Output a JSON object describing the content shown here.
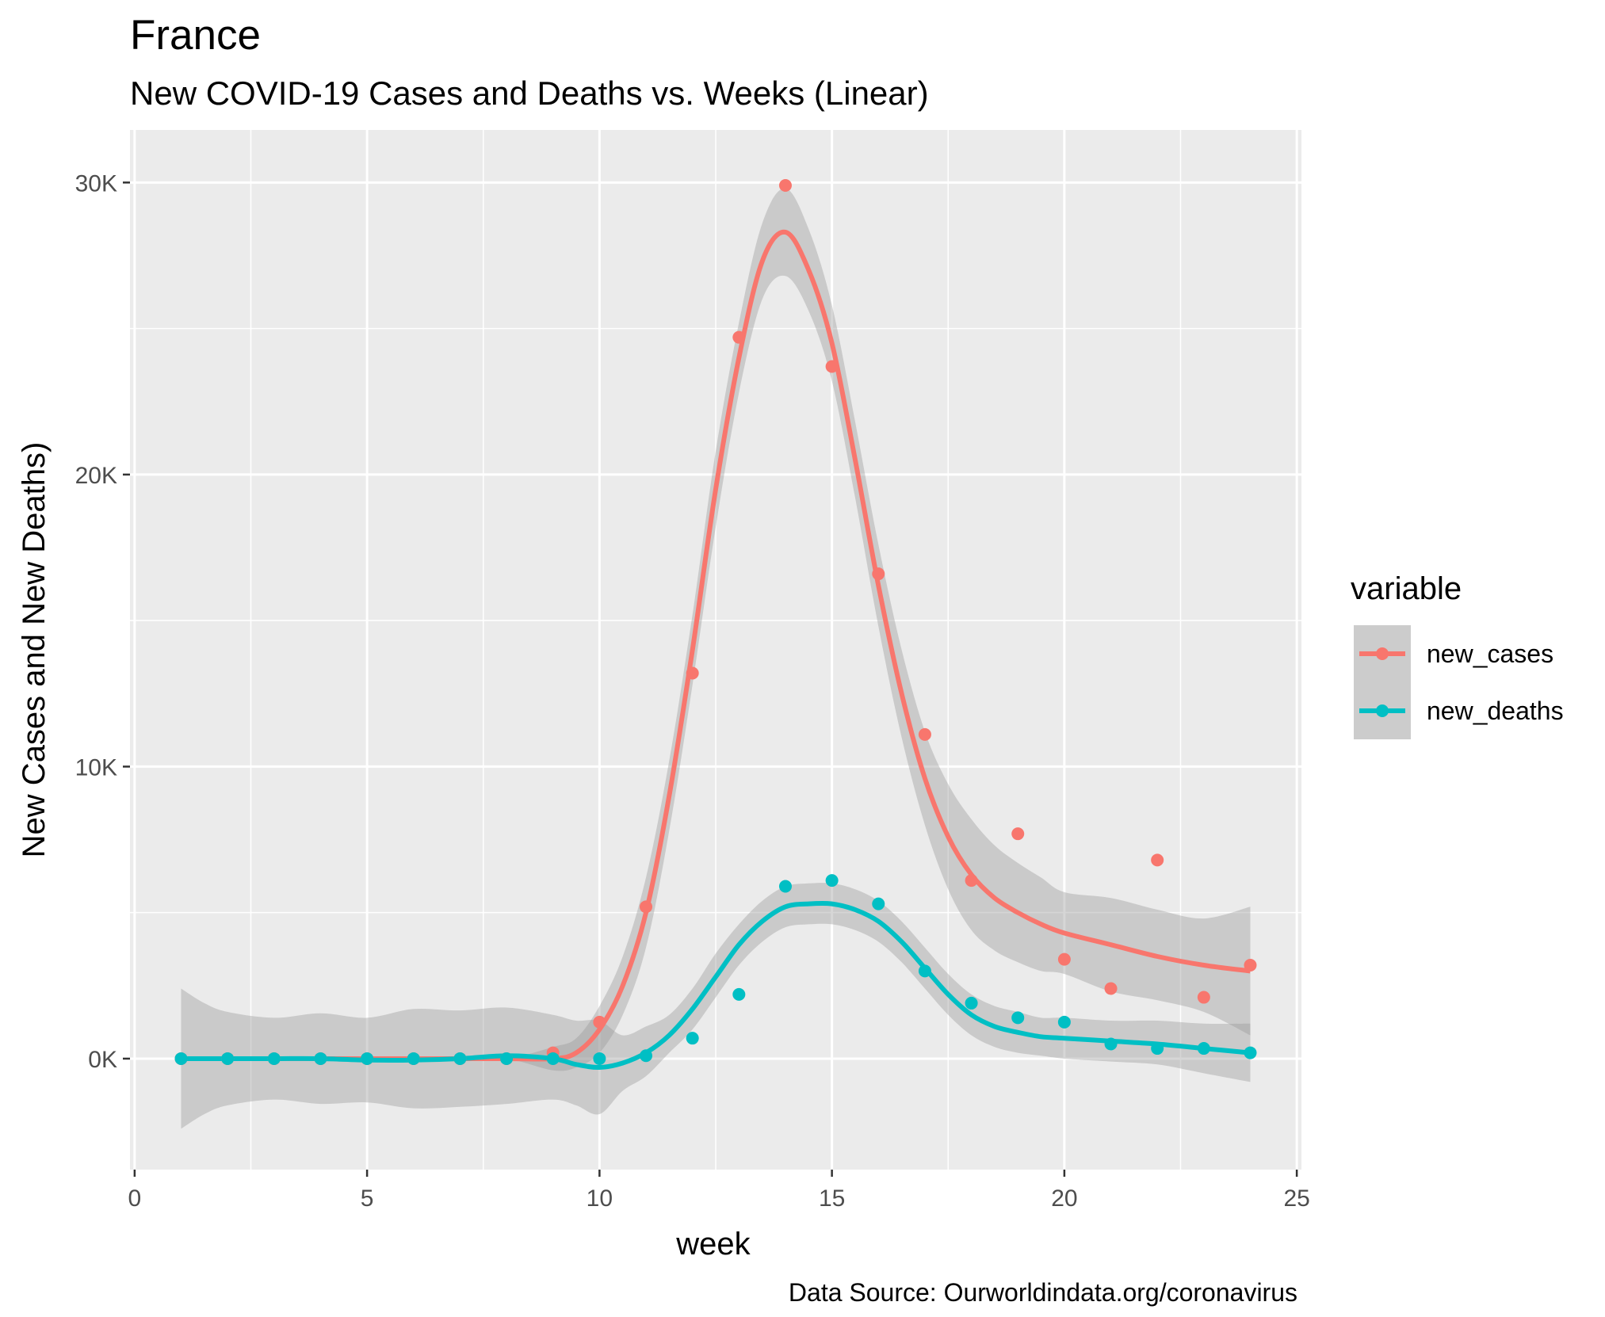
{
  "chart_data": {
    "type": "scatter",
    "title": "France",
    "subtitle": "New COVID-19 Cases and Deaths vs. Weeks (Linear)",
    "xlabel": "week",
    "ylabel": "New Cases and New Deaths)",
    "caption": "Data Source: Ourworldindata.org/coronavirus",
    "xlim": [
      -0.1,
      25.1
    ],
    "ylim": [
      -3800,
      31800
    ],
    "x_ticks": [
      0,
      5,
      10,
      15,
      20,
      25
    ],
    "y_ticks": [
      0,
      10000,
      20000,
      30000
    ],
    "y_tick_labels": [
      "0K",
      "10K",
      "20K",
      "30K"
    ],
    "grid": true,
    "legend_title": "variable",
    "legend_position": "right",
    "series": [
      {
        "name": "new_cases",
        "color": "#F8766D",
        "x": [
          1,
          2,
          3,
          4,
          5,
          6,
          7,
          8,
          9,
          10,
          11,
          12,
          13,
          14,
          15,
          16,
          17,
          18,
          19,
          20,
          21,
          22,
          23,
          24
        ],
        "values": [
          0,
          0,
          0,
          0,
          0,
          0,
          0,
          0,
          200,
          1250,
          5200,
          13200,
          24700,
          29900,
          23700,
          16600,
          11100,
          6100,
          7700,
          3400,
          2400,
          6800,
          2100,
          3200
        ],
        "smooth": [
          [
            1,
            0
          ],
          [
            2,
            0
          ],
          [
            3,
            0
          ],
          [
            4,
            0
          ],
          [
            5,
            0
          ],
          [
            6,
            0
          ],
          [
            7,
            0
          ],
          [
            8,
            0
          ],
          [
            9,
            0
          ],
          [
            9.5,
            200
          ],
          [
            10,
            1000
          ],
          [
            10.5,
            2500
          ],
          [
            11,
            5000
          ],
          [
            11.5,
            9000
          ],
          [
            12,
            14000
          ],
          [
            12.5,
            19500
          ],
          [
            13,
            24000
          ],
          [
            13.5,
            27300
          ],
          [
            14,
            28300
          ],
          [
            14.5,
            27000
          ],
          [
            15,
            24500
          ],
          [
            15.5,
            20500
          ],
          [
            16,
            16200
          ],
          [
            16.5,
            12500
          ],
          [
            17,
            9600
          ],
          [
            17.5,
            7600
          ],
          [
            18,
            6300
          ],
          [
            18.5,
            5500
          ],
          [
            19,
            5000
          ],
          [
            19.5,
            4600
          ],
          [
            20,
            4300
          ],
          [
            21,
            3900
          ],
          [
            22,
            3500
          ],
          [
            23,
            3200
          ],
          [
            24,
            3000
          ]
        ],
        "band": [
          [
            1,
            0,
            0
          ],
          [
            2,
            0,
            0
          ],
          [
            3,
            0,
            0
          ],
          [
            4,
            0,
            0
          ],
          [
            5,
            0,
            0
          ],
          [
            6,
            0,
            0
          ],
          [
            7,
            0,
            0
          ],
          [
            8,
            0,
            0
          ],
          [
            9,
            -400,
            400
          ],
          [
            9.5,
            -300,
            700
          ],
          [
            10,
            200,
            1800
          ],
          [
            10.5,
            1500,
            3500
          ],
          [
            11,
            3800,
            6200
          ],
          [
            11.5,
            7800,
            10200
          ],
          [
            12,
            12800,
            15200
          ],
          [
            12.5,
            18200,
            20800
          ],
          [
            13,
            22800,
            25200
          ],
          [
            13.5,
            26000,
            28600
          ],
          [
            14,
            26800,
            29800
          ],
          [
            14.5,
            25600,
            28400
          ],
          [
            15,
            23200,
            25800
          ],
          [
            15.5,
            19200,
            21800
          ],
          [
            16,
            14800,
            17600
          ],
          [
            16.5,
            11000,
            14000
          ],
          [
            17,
            8000,
            11200
          ],
          [
            17.5,
            5800,
            9400
          ],
          [
            18,
            4400,
            8200
          ],
          [
            18.5,
            3700,
            7300
          ],
          [
            19,
            3300,
            6700
          ],
          [
            19.5,
            3000,
            6200
          ],
          [
            20,
            2900,
            5700
          ],
          [
            21,
            2300,
            5500
          ],
          [
            22,
            2000,
            5100
          ],
          [
            23,
            1600,
            4800
          ],
          [
            24,
            800,
            5200
          ]
        ]
      },
      {
        "name": "new_deaths",
        "color": "#00BFC4",
        "x": [
          1,
          2,
          3,
          4,
          5,
          6,
          7,
          8,
          9,
          10,
          11,
          12,
          13,
          14,
          15,
          16,
          17,
          18,
          19,
          20,
          21,
          22,
          23,
          24
        ],
        "values": [
          0,
          0,
          0,
          0,
          0,
          0,
          0,
          0,
          0,
          0,
          100,
          700,
          2200,
          5900,
          6100,
          5300,
          3000,
          1900,
          1400,
          1250,
          500,
          350,
          350,
          200
        ],
        "smooth": [
          [
            1,
            0
          ],
          [
            2,
            0
          ],
          [
            3,
            0
          ],
          [
            4,
            0
          ],
          [
            5,
            -50
          ],
          [
            6,
            -50
          ],
          [
            7,
            0
          ],
          [
            8,
            100
          ],
          [
            9,
            0
          ],
          [
            9.5,
            -200
          ],
          [
            10,
            -300
          ],
          [
            10.5,
            -150
          ],
          [
            11,
            200
          ],
          [
            11.5,
            800
          ],
          [
            12,
            1700
          ],
          [
            12.5,
            2800
          ],
          [
            13,
            3900
          ],
          [
            13.5,
            4700
          ],
          [
            14,
            5200
          ],
          [
            14.5,
            5300
          ],
          [
            15,
            5300
          ],
          [
            15.5,
            5100
          ],
          [
            16,
            4700
          ],
          [
            16.5,
            4000
          ],
          [
            17,
            3100
          ],
          [
            17.5,
            2200
          ],
          [
            18,
            1500
          ],
          [
            18.5,
            1100
          ],
          [
            19,
            900
          ],
          [
            19.5,
            750
          ],
          [
            20,
            700
          ],
          [
            21,
            600
          ],
          [
            22,
            500
          ],
          [
            23,
            350
          ],
          [
            24,
            200
          ]
        ],
        "band": [
          [
            1,
            -2400,
            2400
          ],
          [
            1.5,
            -1900,
            1900
          ],
          [
            2,
            -1600,
            1600
          ],
          [
            3,
            -1400,
            1400
          ],
          [
            4,
            -1550,
            1550
          ],
          [
            5,
            -1500,
            1400
          ],
          [
            6,
            -1700,
            1700
          ],
          [
            7,
            -1650,
            1650
          ],
          [
            8,
            -1550,
            1750
          ],
          [
            9,
            -1400,
            1500
          ],
          [
            9.5,
            -1600,
            1300
          ],
          [
            10,
            -1900,
            1300
          ],
          [
            10.5,
            -1100,
            800
          ],
          [
            11,
            -600,
            1100
          ],
          [
            11.5,
            200,
            1500
          ],
          [
            12,
            1000,
            2400
          ],
          [
            12.5,
            2100,
            3600
          ],
          [
            13,
            3200,
            4600
          ],
          [
            13.5,
            4000,
            5400
          ],
          [
            14,
            4500,
            5900
          ],
          [
            14.5,
            4600,
            6000
          ],
          [
            15,
            4600,
            6000
          ],
          [
            15.5,
            4400,
            5800
          ],
          [
            16,
            4000,
            5400
          ],
          [
            16.5,
            3300,
            4700
          ],
          [
            17,
            2400,
            3800
          ],
          [
            17.5,
            1500,
            2900
          ],
          [
            18,
            800,
            2200
          ],
          [
            18.5,
            400,
            1800
          ],
          [
            19,
            200,
            1600
          ],
          [
            19.5,
            100,
            1400
          ],
          [
            20,
            0,
            1400
          ],
          [
            21,
            -100,
            1300
          ],
          [
            22,
            -200,
            1300
          ],
          [
            23,
            -500,
            1200
          ],
          [
            24,
            -800,
            1200
          ]
        ]
      }
    ]
  }
}
